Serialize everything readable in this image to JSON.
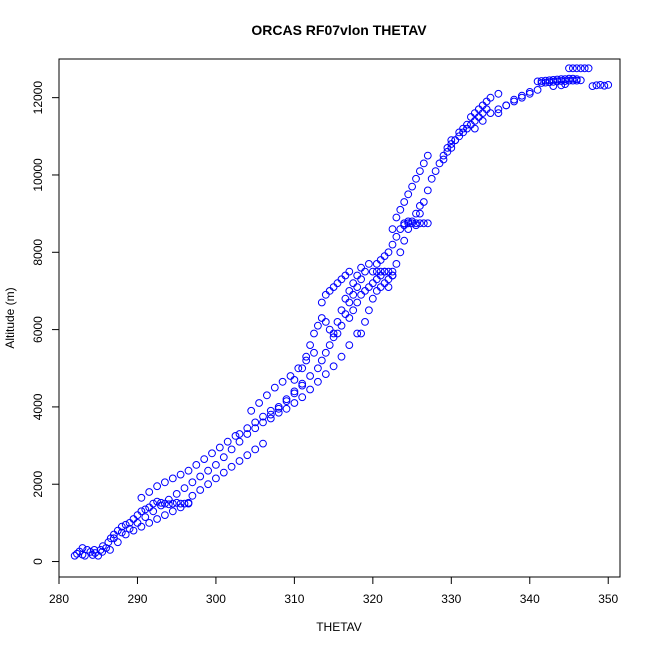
{
  "chart_data": {
    "type": "scatter",
    "title": "ORCAS RF07vlon THETAV",
    "xlabel": "THETAV",
    "ylabel": "Altitude (m)",
    "xlim": [
      280,
      351.5
    ],
    "ylim": [
      -400,
      13000
    ],
    "xticks": [
      280,
      290,
      300,
      310,
      320,
      330,
      340,
      350
    ],
    "yticks": [
      0,
      2000,
      4000,
      6000,
      8000,
      10000,
      12000
    ],
    "marker": "open-circle",
    "color": "#0000ff",
    "series": [
      {
        "points": [
          [
            282.0,
            150
          ],
          [
            282.3,
            200
          ],
          [
            282.6,
            260
          ],
          [
            283.0,
            180
          ],
          [
            283.3,
            150
          ],
          [
            283.6,
            300
          ],
          [
            284.0,
            250
          ],
          [
            284.3,
            170
          ],
          [
            284.6,
            220
          ],
          [
            285.0,
            150
          ],
          [
            285.3,
            300
          ],
          [
            285.6,
            400
          ],
          [
            286.0,
            350
          ],
          [
            286.3,
            500
          ],
          [
            286.6,
            600
          ],
          [
            287.0,
            700
          ],
          [
            287.5,
            800
          ],
          [
            288.0,
            900
          ],
          [
            288.5,
            950
          ],
          [
            289.0,
            1000
          ],
          [
            289.5,
            1100
          ],
          [
            290.0,
            1200
          ],
          [
            290.5,
            1300
          ],
          [
            291.0,
            1350
          ],
          [
            291.5,
            1400
          ],
          [
            292.0,
            1500
          ],
          [
            292.5,
            1550
          ],
          [
            293.0,
            1520
          ],
          [
            293.5,
            1500
          ],
          [
            294.0,
            1480
          ],
          [
            294.5,
            1500
          ],
          [
            295.0,
            1520
          ],
          [
            295.5,
            1500
          ],
          [
            296.0,
            1500
          ],
          [
            296.5,
            1520
          ],
          [
            283.0,
            350
          ],
          [
            284.5,
            300
          ],
          [
            285.5,
            250
          ],
          [
            286.5,
            300
          ],
          [
            287.5,
            500
          ],
          [
            288.5,
            700
          ],
          [
            289.5,
            800
          ],
          [
            290.5,
            900
          ],
          [
            291.5,
            1000
          ],
          [
            292.5,
            1100
          ],
          [
            293.5,
            1200
          ],
          [
            294.5,
            1300
          ],
          [
            295.5,
            1400
          ],
          [
            296.5,
            1500
          ],
          [
            287.0,
            600
          ],
          [
            288.0,
            750
          ],
          [
            289.0,
            850
          ],
          [
            290.0,
            1000
          ],
          [
            291.0,
            1150
          ],
          [
            292.0,
            1300
          ],
          [
            293.0,
            1450
          ],
          [
            294.0,
            1600
          ],
          [
            295.0,
            1750
          ],
          [
            296.0,
            1900
          ],
          [
            297.0,
            2050
          ],
          [
            298.0,
            2200
          ],
          [
            299.0,
            2350
          ],
          [
            300.0,
            2500
          ],
          [
            290.5,
            1650
          ],
          [
            291.5,
            1800
          ],
          [
            292.5,
            1950
          ],
          [
            293.5,
            2050
          ],
          [
            294.5,
            2150
          ],
          [
            295.5,
            2250
          ],
          [
            296.5,
            2350
          ],
          [
            297.5,
            2500
          ],
          [
            298.5,
            2650
          ],
          [
            299.5,
            2800
          ],
          [
            300.5,
            2950
          ],
          [
            301.5,
            3100
          ],
          [
            302.5,
            3250
          ],
          [
            297.0,
            1700
          ],
          [
            298.0,
            1850
          ],
          [
            299.0,
            2000
          ],
          [
            300.0,
            2150
          ],
          [
            301.0,
            2300
          ],
          [
            302.0,
            2450
          ],
          [
            303.0,
            2600
          ],
          [
            304.0,
            2750
          ],
          [
            305.0,
            2900
          ],
          [
            306.0,
            3050
          ],
          [
            301.0,
            2700
          ],
          [
            302.0,
            2900
          ],
          [
            303.0,
            3100
          ],
          [
            304.0,
            3300
          ],
          [
            305.0,
            3450
          ],
          [
            306.0,
            3600
          ],
          [
            307.0,
            3800
          ],
          [
            308.0,
            3950
          ],
          [
            309.0,
            4150
          ],
          [
            310.0,
            4350
          ],
          [
            311.0,
            4550
          ],
          [
            303.0,
            3300
          ],
          [
            304.0,
            3450
          ],
          [
            305.0,
            3600
          ],
          [
            306.0,
            3750
          ],
          [
            307.0,
            3900
          ],
          [
            308.0,
            4000
          ],
          [
            309.0,
            4200
          ],
          [
            310.0,
            4400
          ],
          [
            311.0,
            4600
          ],
          [
            312.0,
            4800
          ],
          [
            304.5,
            3900
          ],
          [
            305.5,
            4100
          ],
          [
            306.5,
            4300
          ],
          [
            307.5,
            4500
          ],
          [
            308.5,
            4650
          ],
          [
            309.5,
            4800
          ],
          [
            310.5,
            5000
          ],
          [
            311.5,
            5200
          ],
          [
            312.5,
            5400
          ],
          [
            307.0,
            3700
          ],
          [
            308.0,
            3850
          ],
          [
            309.0,
            3950
          ],
          [
            310.0,
            4100
          ],
          [
            311.0,
            4250
          ],
          [
            312.0,
            4450
          ],
          [
            313.0,
            4650
          ],
          [
            314.0,
            4850
          ],
          [
            315.0,
            5050
          ],
          [
            316.0,
            5300
          ],
          [
            317.0,
            5600
          ],
          [
            318.0,
            5900
          ],
          [
            310.0,
            4700
          ],
          [
            311.0,
            5000
          ],
          [
            311.5,
            5300
          ],
          [
            312.0,
            5600
          ],
          [
            312.5,
            5900
          ],
          [
            313.0,
            6100
          ],
          [
            313.5,
            6300
          ],
          [
            314.0,
            6200
          ],
          [
            314.5,
            6000
          ],
          [
            315.0,
            5800
          ],
          [
            315.5,
            5900
          ],
          [
            316.0,
            6100
          ],
          [
            316.5,
            6400
          ],
          [
            317.0,
            6700
          ],
          [
            317.5,
            6900
          ],
          [
            318.0,
            7100
          ],
          [
            318.5,
            7300
          ],
          [
            319.0,
            7500
          ],
          [
            319.5,
            7700
          ],
          [
            313.0,
            5000
          ],
          [
            313.5,
            5200
          ],
          [
            314.0,
            5400
          ],
          [
            314.5,
            5600
          ],
          [
            315.0,
            5900
          ],
          [
            315.5,
            6200
          ],
          [
            316.0,
            6500
          ],
          [
            316.5,
            6800
          ],
          [
            317.0,
            7000
          ],
          [
            317.5,
            7200
          ],
          [
            318.0,
            7400
          ],
          [
            318.5,
            7600
          ],
          [
            313.5,
            6700
          ],
          [
            314.0,
            6900
          ],
          [
            314.5,
            7000
          ],
          [
            315.0,
            7100
          ],
          [
            315.5,
            7200
          ],
          [
            316.0,
            7300
          ],
          [
            316.5,
            7400
          ],
          [
            317.0,
            7500
          ],
          [
            317.0,
            6300
          ],
          [
            317.5,
            6500
          ],
          [
            318.0,
            6700
          ],
          [
            318.5,
            6900
          ],
          [
            319.0,
            7000
          ],
          [
            319.5,
            7100
          ],
          [
            320.0,
            7200
          ],
          [
            320.5,
            7300
          ],
          [
            321.0,
            7400
          ],
          [
            321.5,
            7500
          ],
          [
            318.5,
            5900
          ],
          [
            319.0,
            6200
          ],
          [
            319.5,
            6500
          ],
          [
            320.0,
            6800
          ],
          [
            320.5,
            7000
          ],
          [
            321.0,
            7100
          ],
          [
            321.5,
            7200
          ],
          [
            322.0,
            7300
          ],
          [
            322.5,
            7400
          ],
          [
            320.0,
            7500
          ],
          [
            320.5,
            7500
          ],
          [
            321.0,
            7500
          ],
          [
            321.5,
            7500
          ],
          [
            322.0,
            7500
          ],
          [
            322.5,
            7500
          ],
          [
            320.5,
            7700
          ],
          [
            321.0,
            7800
          ],
          [
            321.5,
            7900
          ],
          [
            322.0,
            8000
          ],
          [
            322.5,
            8200
          ],
          [
            323.0,
            8400
          ],
          [
            323.5,
            8600
          ],
          [
            324.0,
            8700
          ],
          [
            324.5,
            8800
          ],
          [
            322.0,
            7100
          ],
          [
            322.5,
            7400
          ],
          [
            323.0,
            7700
          ],
          [
            323.5,
            8000
          ],
          [
            324.0,
            8300
          ],
          [
            324.5,
            8600
          ],
          [
            325.0,
            8800
          ],
          [
            325.5,
            9000
          ],
          [
            326.0,
            9200
          ],
          [
            324.0,
            8750
          ],
          [
            324.5,
            8750
          ],
          [
            325.0,
            8750
          ],
          [
            325.5,
            8750
          ],
          [
            326.0,
            8750
          ],
          [
            326.5,
            8750
          ],
          [
            327.0,
            8750
          ],
          [
            322.5,
            8600
          ],
          [
            323.0,
            8900
          ],
          [
            323.5,
            9100
          ],
          [
            324.0,
            9300
          ],
          [
            324.5,
            9500
          ],
          [
            325.0,
            9700
          ],
          [
            325.5,
            9900
          ],
          [
            326.0,
            10100
          ],
          [
            326.5,
            10300
          ],
          [
            327.0,
            10500
          ],
          [
            325.5,
            8700
          ],
          [
            326.0,
            9000
          ],
          [
            326.5,
            9300
          ],
          [
            327.0,
            9600
          ],
          [
            327.5,
            9900
          ],
          [
            328.0,
            10100
          ],
          [
            328.5,
            10300
          ],
          [
            329.0,
            10500
          ],
          [
            329.5,
            10700
          ],
          [
            330.0,
            10900
          ],
          [
            329.0,
            10400
          ],
          [
            329.5,
            10600
          ],
          [
            330.0,
            10800
          ],
          [
            330.5,
            10900
          ],
          [
            331.0,
            11000
          ],
          [
            331.5,
            11100
          ],
          [
            332.0,
            11200
          ],
          [
            332.5,
            11300
          ],
          [
            333.0,
            11400
          ],
          [
            333.5,
            11500
          ],
          [
            334.0,
            11600
          ],
          [
            334.5,
            11700
          ],
          [
            330.0,
            10700
          ],
          [
            330.5,
            10900
          ],
          [
            331.0,
            11100
          ],
          [
            331.5,
            11200
          ],
          [
            332.0,
            11300
          ],
          [
            332.5,
            11500
          ],
          [
            333.0,
            11600
          ],
          [
            333.5,
            11700
          ],
          [
            334.0,
            11800
          ],
          [
            334.5,
            11900
          ],
          [
            335.0,
            12000
          ],
          [
            336.0,
            12100
          ],
          [
            333.0,
            11200
          ],
          [
            334.0,
            11400
          ],
          [
            335.0,
            11600
          ],
          [
            336.0,
            11700
          ],
          [
            337.0,
            11800
          ],
          [
            338.0,
            11900
          ],
          [
            339.0,
            12000
          ],
          [
            340.0,
            12100
          ],
          [
            341.0,
            12200
          ],
          [
            336.0,
            11600
          ],
          [
            337.0,
            11800
          ],
          [
            338.0,
            11950
          ],
          [
            339.0,
            12050
          ],
          [
            340.0,
            12150
          ],
          [
            341.0,
            12420
          ],
          [
            341.5,
            12430
          ],
          [
            342.0,
            12440
          ],
          [
            342.5,
            12450
          ],
          [
            343.0,
            12460
          ],
          [
            343.5,
            12470
          ],
          [
            344.0,
            12480
          ],
          [
            344.5,
            12480
          ],
          [
            345.0,
            12490
          ],
          [
            345.5,
            12490
          ],
          [
            346.0,
            12480
          ],
          [
            341.5,
            12380
          ],
          [
            342.0,
            12390
          ],
          [
            342.5,
            12400
          ],
          [
            343.0,
            12410
          ],
          [
            343.5,
            12420
          ],
          [
            344.0,
            12430
          ],
          [
            344.5,
            12430
          ],
          [
            345.0,
            12440
          ],
          [
            345.5,
            12440
          ],
          [
            346.0,
            12440
          ],
          [
            346.5,
            12450
          ],
          [
            343.0,
            12300
          ],
          [
            344.0,
            12320
          ],
          [
            344.5,
            12350
          ],
          [
            345.0,
            12760
          ],
          [
            345.5,
            12760
          ],
          [
            346.0,
            12760
          ],
          [
            346.5,
            12760
          ],
          [
            347.0,
            12760
          ],
          [
            347.5,
            12760
          ],
          [
            348.0,
            12300
          ],
          [
            348.5,
            12320
          ],
          [
            349.0,
            12330
          ],
          [
            349.5,
            12310
          ],
          [
            350.0,
            12330
          ]
        ]
      }
    ]
  }
}
